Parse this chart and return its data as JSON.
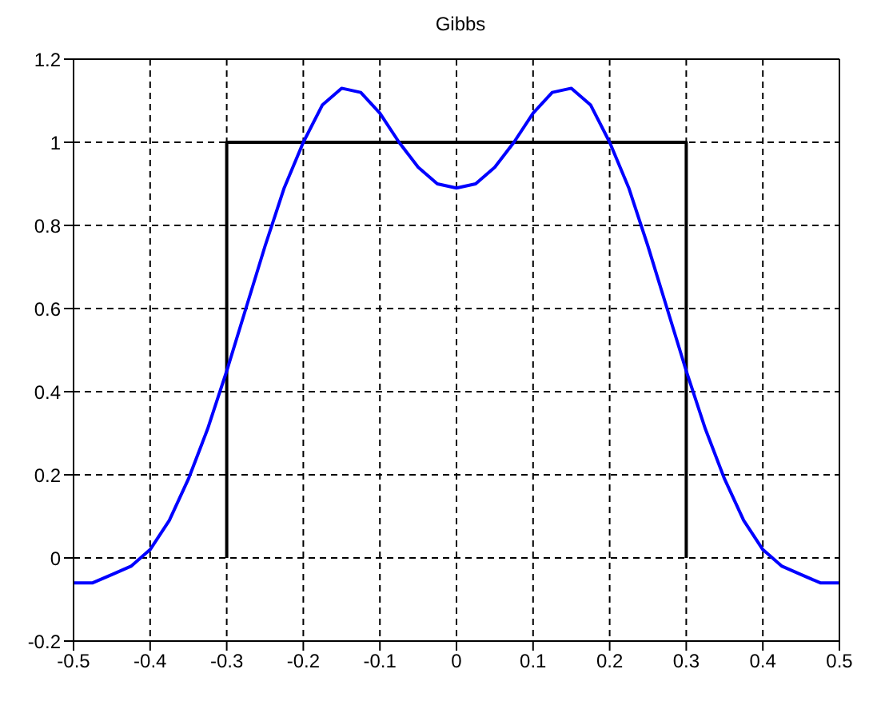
{
  "chart_data": {
    "type": "line",
    "title": "Gibbs",
    "xlim": [
      -0.5,
      0.5
    ],
    "xticks": [
      -0.5,
      -0.4,
      -0.3,
      -0.2,
      -0.1,
      0,
      0.1,
      0.2,
      0.3,
      0.4,
      0.5
    ],
    "ylim": [
      -0.2,
      1.2
    ],
    "yticks": [
      -0.2,
      0,
      0.2,
      0.4,
      0.6,
      0.8,
      1,
      1.2
    ],
    "grid": true,
    "marker": "none",
    "series": [
      {
        "color": "#000000",
        "x": [
          -0.3,
          -0.3,
          0.3,
          0.3
        ],
        "values": [
          0,
          1,
          1,
          0
        ]
      },
      {
        "color": "#0000ff",
        "x": [
          -0.5,
          -0.475,
          -0.45,
          -0.425,
          -0.4,
          -0.375,
          -0.35,
          -0.325,
          -0.3,
          -0.275,
          -0.25,
          -0.225,
          -0.2,
          -0.175,
          -0.15,
          -0.125,
          -0.1,
          -0.075,
          -0.05,
          -0.025,
          0,
          0.025,
          0.05,
          0.075,
          0.1,
          0.125,
          0.15,
          0.175,
          0.2,
          0.225,
          0.25,
          0.275,
          0.3,
          0.325,
          0.35,
          0.375,
          0.4,
          0.425,
          0.45,
          0.475,
          0.5
        ],
        "values": [
          -0.06,
          -0.06,
          -0.04,
          -0.02,
          0.02,
          0.09,
          0.19,
          0.31,
          0.45,
          0.6,
          0.75,
          0.89,
          1.0,
          1.09,
          1.13,
          1.12,
          1.07,
          1.0,
          0.94,
          0.9,
          0.89,
          0.9,
          0.94,
          1.0,
          1.07,
          1.12,
          1.13,
          1.09,
          1.0,
          0.89,
          0.75,
          0.6,
          0.45,
          0.31,
          0.19,
          0.09,
          0.02,
          -0.02,
          -0.04,
          -0.06,
          -0.06
        ]
      }
    ]
  }
}
